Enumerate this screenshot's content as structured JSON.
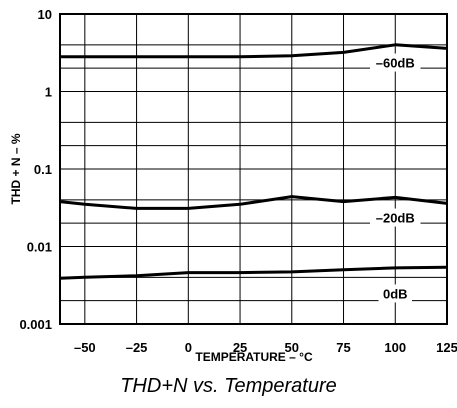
{
  "caption": "THD+N vs. Temperature",
  "chart_data": {
    "type": "line",
    "xlabel": "TEMPERATURE – °C",
    "ylabel": "THD + N – %",
    "xlim": [
      -62,
      125
    ],
    "ylim": [
      0.001,
      10
    ],
    "yscale": "log",
    "grid": true,
    "x_ticks": [
      -50,
      -25,
      0,
      25,
      50,
      75,
      100,
      125
    ],
    "x_tick_labels": [
      "–50",
      "–25",
      "0",
      "25",
      "50",
      "75",
      "100",
      "125"
    ],
    "y_ticks": [
      0.001,
      0.01,
      0.1,
      1,
      10
    ],
    "y_tick_labels": [
      "0.001",
      "0.01",
      "0.1",
      "1",
      "10"
    ],
    "series": [
      {
        "name": "–60dB",
        "x": [
          -62,
          -50,
          -25,
          0,
          25,
          50,
          75,
          100,
          125
        ],
        "y": [
          2.8,
          2.8,
          2.8,
          2.8,
          2.8,
          2.9,
          3.2,
          4.0,
          3.6
        ]
      },
      {
        "name": "–20dB",
        "x": [
          -62,
          -50,
          -25,
          0,
          25,
          50,
          75,
          100,
          125
        ],
        "y": [
          0.038,
          0.035,
          0.031,
          0.031,
          0.035,
          0.044,
          0.038,
          0.043,
          0.036
        ]
      },
      {
        "name": "0dB",
        "x": [
          -62,
          -50,
          -25,
          0,
          25,
          50,
          75,
          100,
          125
        ],
        "y": [
          0.0039,
          0.004,
          0.0042,
          0.0046,
          0.0046,
          0.0047,
          0.005,
          0.0053,
          0.0054
        ]
      }
    ]
  }
}
